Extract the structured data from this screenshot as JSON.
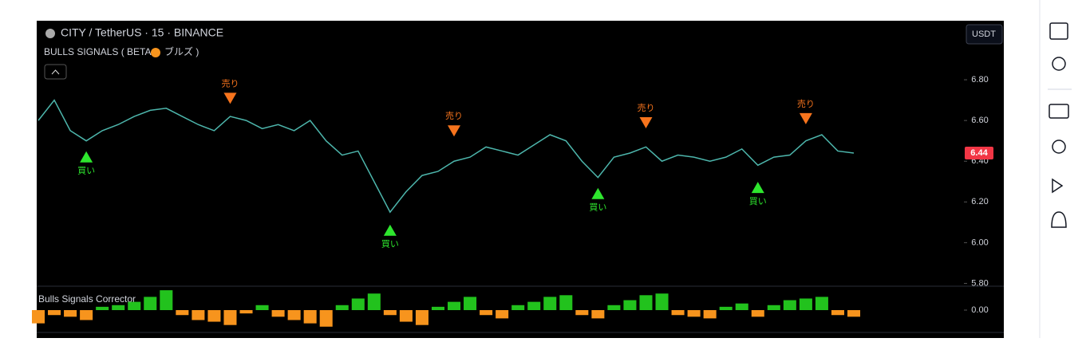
{
  "header": {
    "symbol": "CITY / TetherUS · 15 · BINANCE",
    "indicator": "BULLS SIGNALS ( BETA",
    "indicator_suffix": "ブルズ )",
    "currency": "USDT"
  },
  "chart_data": {
    "type": "line",
    "color": "#4db6ac",
    "categories": [
      null,
      null,
      null,
      null,
      null,
      null,
      null,
      null,
      null,
      null,
      null,
      null,
      null,
      null,
      null,
      null,
      null,
      null,
      null,
      null,
      null,
      null,
      null,
      null,
      null,
      null,
      null,
      null,
      null,
      null,
      null,
      null,
      null,
      null,
      null,
      null,
      null,
      null,
      null,
      null,
      null,
      null,
      null,
      null,
      null,
      null,
      null,
      null,
      null,
      null,
      null,
      null
    ],
    "series": [
      {
        "values": [
          6.6,
          6.7,
          6.55,
          6.5,
          6.55,
          6.58,
          6.62,
          6.65,
          6.66,
          6.62,
          6.58,
          6.55,
          6.62,
          6.6,
          6.56,
          6.58,
          6.55,
          6.6,
          6.5,
          6.43,
          6.45,
          6.3,
          6.15,
          6.25,
          6.33,
          6.35,
          6.4,
          6.42,
          6.47,
          6.45,
          6.43,
          6.48,
          6.53,
          6.5,
          6.4,
          6.32,
          6.42,
          6.44,
          6.47,
          6.4,
          6.43,
          6.42,
          6.4,
          6.42,
          6.46,
          6.38,
          6.42,
          6.43,
          6.5,
          6.53,
          6.45,
          6.44
        ]
      }
    ],
    "ylim": [
      5.79,
      7.09
    ],
    "yticks": [
      {
        "value": 5.8,
        "label": "5.80"
      },
      {
        "value": 6.0,
        "label": "6.00"
      },
      {
        "value": 6.2,
        "label": "6.20"
      },
      {
        "value": 6.4,
        "label": "6.40"
      },
      {
        "value": 6.6,
        "label": "6.60"
      },
      {
        "value": 6.8,
        "label": "6.80"
      }
    ],
    "last_price": {
      "value": 6.44,
      "label": "6.44"
    },
    "signals": [
      {
        "index": 3,
        "kind": "buy",
        "label": "買い",
        "price": 6.48
      },
      {
        "index": 12,
        "kind": "sell",
        "label": "売り",
        "price": 6.65
      },
      {
        "index": 22,
        "kind": "buy",
        "label": "買い",
        "price": 6.12
      },
      {
        "index": 26,
        "kind": "sell",
        "label": "売り",
        "price": 6.49
      },
      {
        "index": 35,
        "kind": "buy",
        "label": "買い",
        "price": 6.3
      },
      {
        "index": 38,
        "kind": "sell",
        "label": "売り",
        "price": 6.53
      },
      {
        "index": 45,
        "kind": "buy",
        "label": "買い",
        "price": 6.33
      },
      {
        "index": 48,
        "kind": "sell",
        "label": "売り",
        "price": 6.55
      }
    ],
    "oscillator": {
      "title": "Bulls Signals Corrector",
      "ylim": [
        -1.3,
        1.3
      ],
      "yticks": [
        {
          "value": 0,
          "label": "0.00"
        }
      ],
      "up_color": "#22c21d",
      "down_color": "#f7941d",
      "values": [
        -0.8,
        -0.3,
        -0.4,
        -0.6,
        0.2,
        0.3,
        0.5,
        0.8,
        1.2,
        -0.3,
        -0.6,
        -0.7,
        -0.9,
        -0.2,
        0.3,
        -0.4,
        -0.6,
        -0.8,
        -1.0,
        0.3,
        0.7,
        1.0,
        -0.3,
        -0.7,
        -0.9,
        0.2,
        0.5,
        0.8,
        -0.3,
        -0.5,
        0.3,
        0.5,
        0.8,
        0.9,
        -0.3,
        -0.5,
        0.3,
        0.6,
        0.9,
        1.0,
        -0.3,
        -0.4,
        -0.5,
        0.2,
        0.4,
        -0.4,
        0.3,
        0.6,
        0.7,
        0.8,
        -0.3,
        -0.4
      ]
    }
  }
}
